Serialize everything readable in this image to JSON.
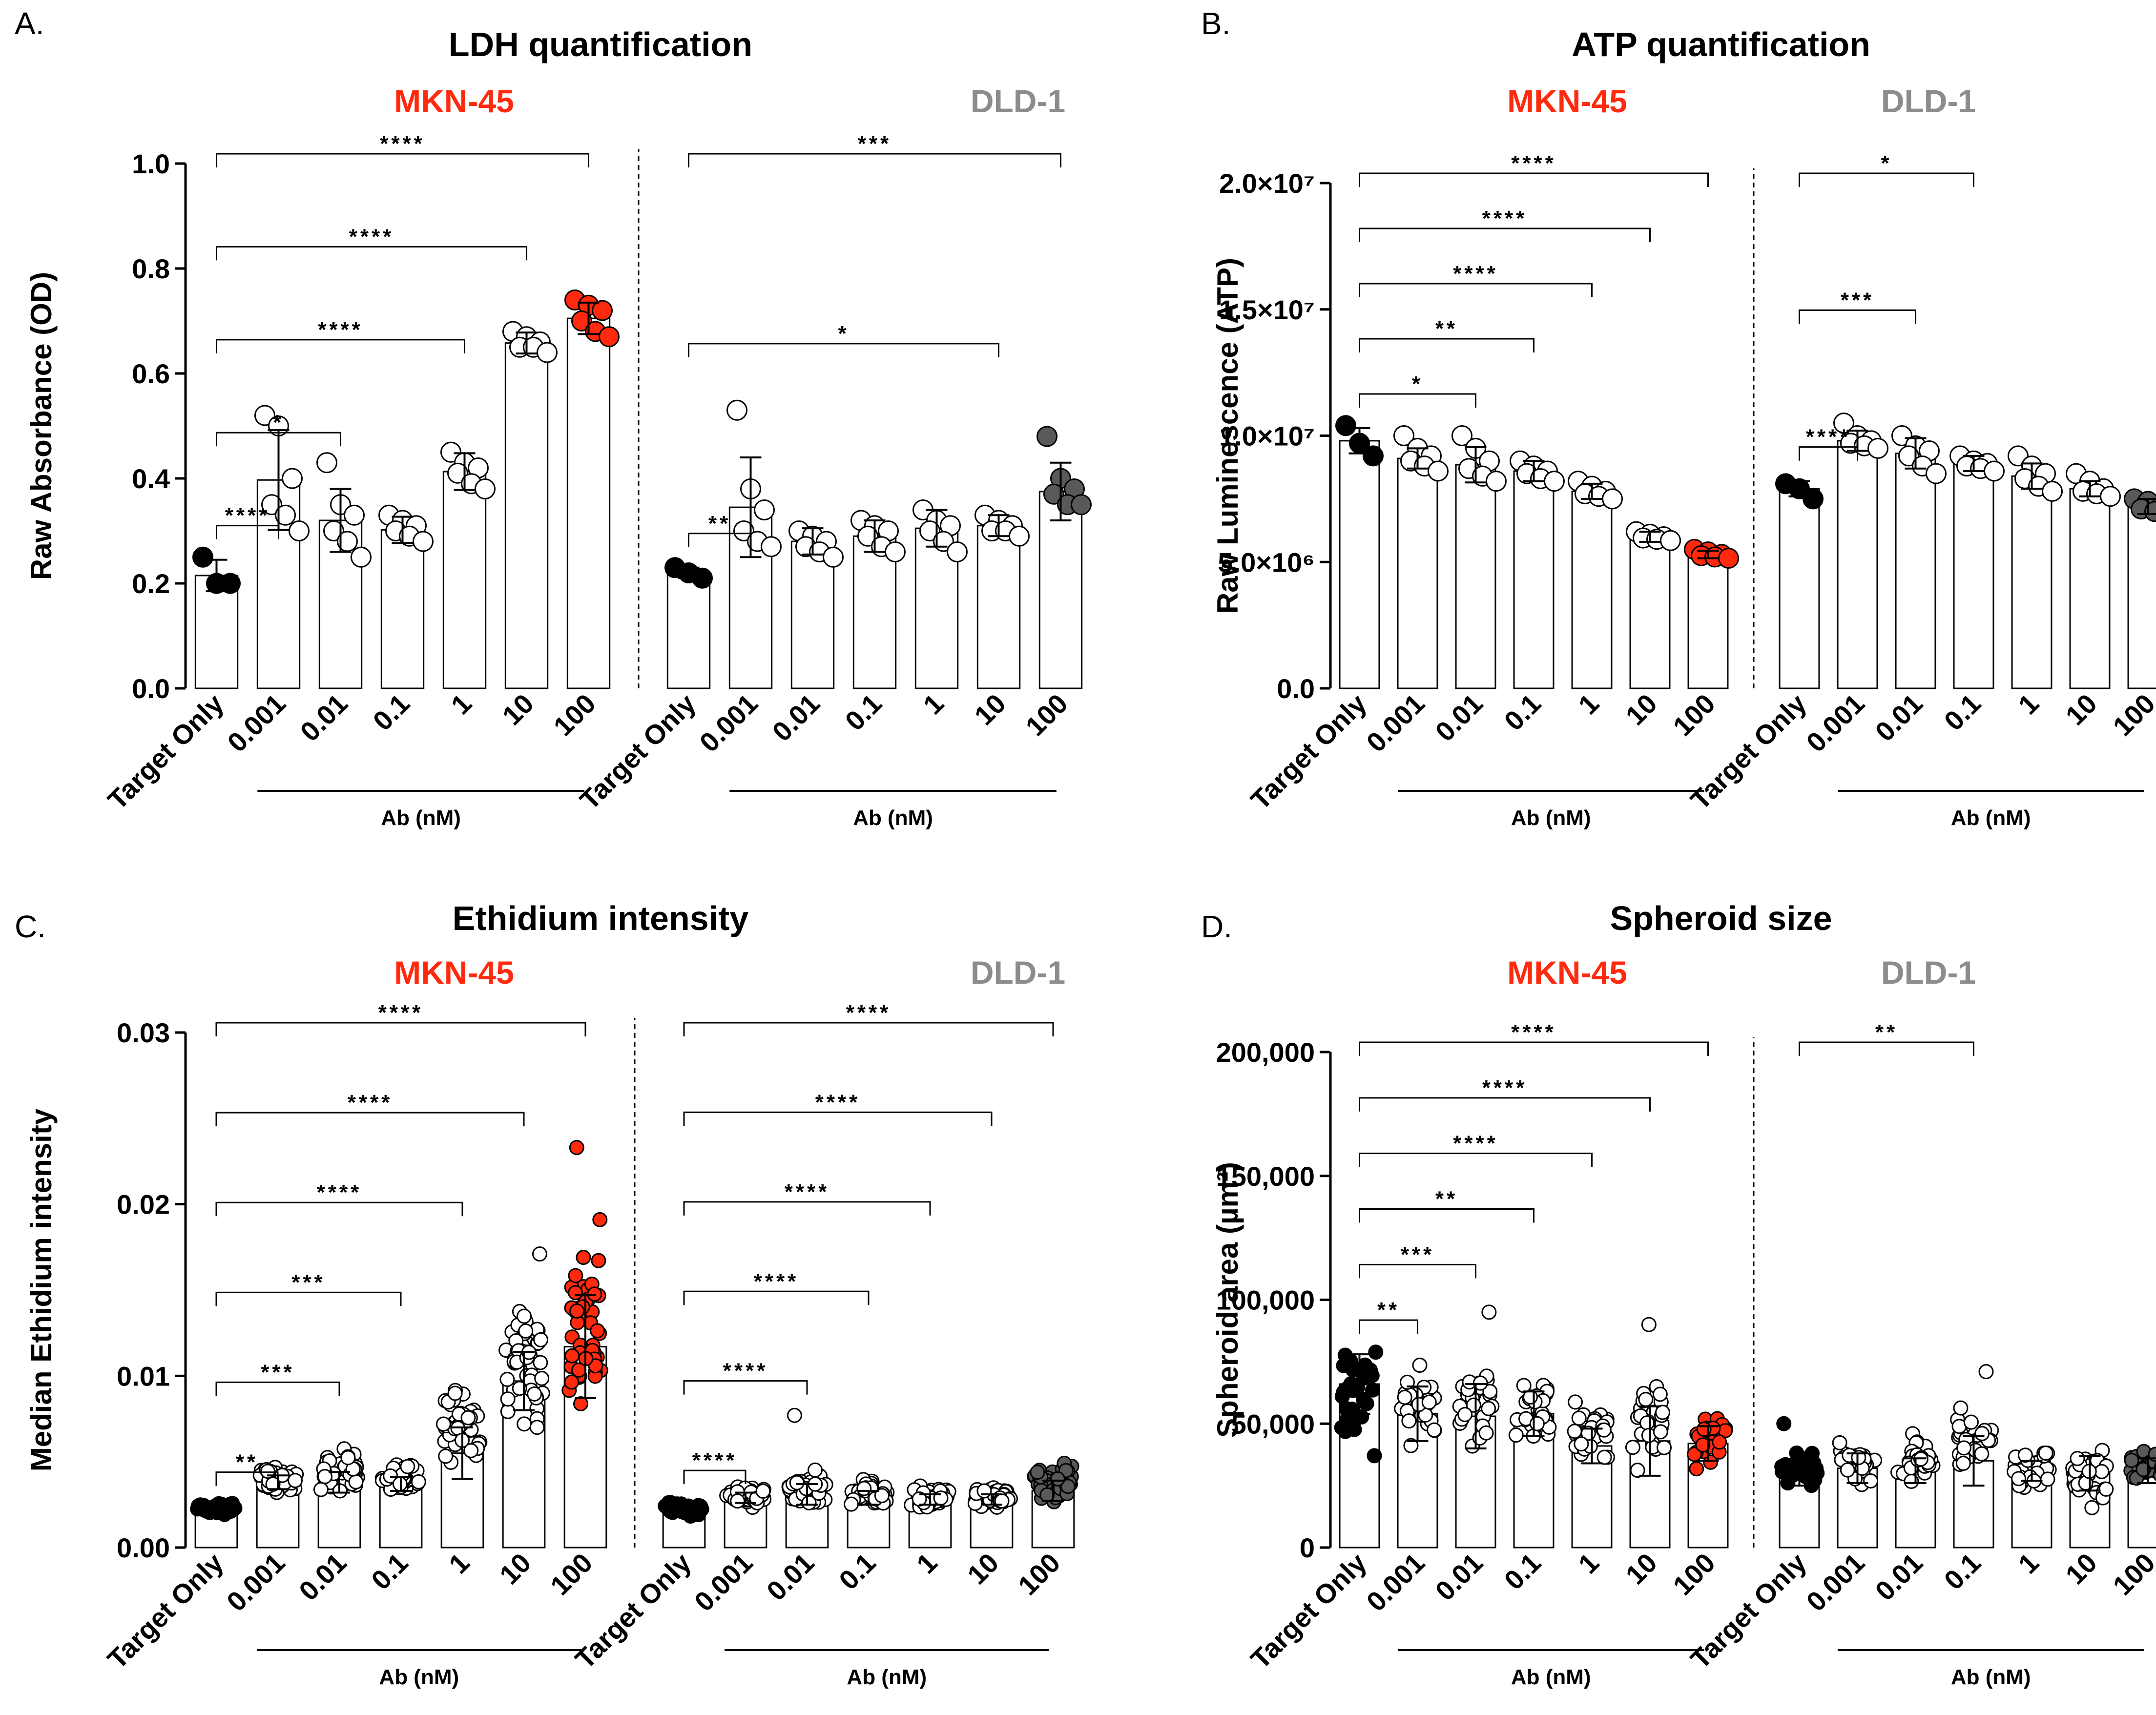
{
  "figure": {
    "x_group_label": "Ab (nM)",
    "categories": [
      "Target Only",
      "0.001",
      "0.01",
      "0.1",
      "1",
      "10",
      "100"
    ],
    "colors": {
      "mkn45": "#ff2a0e",
      "dld1": "#8c8c8c",
      "mkn_dark": "#000000",
      "dld_dark": "#595959",
      "red_dot": "#ff2a0e"
    }
  },
  "chart_data": [
    {
      "panel_label": "A.",
      "type": "bar",
      "title": "LDH quantification",
      "ylabel": "Raw Absorbance (OD)",
      "ylim": [
        0,
        1.0
      ],
      "yticks": [
        0.0,
        0.2,
        0.4,
        0.6,
        0.8,
        1.0
      ],
      "ytick_labels": [
        "0.0",
        "0.2",
        "0.4",
        "0.6",
        "0.8",
        "1.0"
      ],
      "groups": [
        {
          "name": "MKN-45",
          "categories": [
            "Target Only",
            "0.001",
            "0.01",
            "0.1",
            "1",
            "10",
            "100"
          ],
          "values": [
            0.215,
            0.397,
            0.32,
            0.302,
            0.413,
            0.658,
            0.705
          ],
          "sd": [
            0.03,
            0.095,
            0.06,
            0.025,
            0.035,
            0.02,
            0.03
          ],
          "points": [
            [
              0.25,
              0.2,
              0.2
            ],
            [
              0.52,
              0.5,
              0.4,
              0.35,
              0.33,
              0.3
            ],
            [
              0.43,
              0.35,
              0.33,
              0.3,
              0.28,
              0.25
            ],
            [
              0.33,
              0.32,
              0.31,
              0.3,
              0.29,
              0.28
            ],
            [
              0.45,
              0.43,
              0.42,
              0.41,
              0.39,
              0.38
            ],
            [
              0.68,
              0.67,
              0.66,
              0.65,
              0.65,
              0.64
            ],
            [
              0.74,
              0.73,
              0.72,
              0.7,
              0.68,
              0.67
            ]
          ],
          "significance": [
            {
              "target": "0.001",
              "stars": "****"
            },
            {
              "target": "0.01",
              "stars": "*"
            },
            {
              "target": "1",
              "stars": "****"
            },
            {
              "target": "10",
              "stars": "****"
            },
            {
              "target": "100",
              "stars": "****"
            }
          ]
        },
        {
          "name": "DLD-1",
          "categories": [
            "Target Only",
            "0.001",
            "0.01",
            "0.1",
            "1",
            "10",
            "100"
          ],
          "values": [
            0.22,
            0.345,
            0.28,
            0.29,
            0.305,
            0.31,
            0.375
          ],
          "sd": [
            0.01,
            0.095,
            0.025,
            0.03,
            0.035,
            0.02,
            0.055
          ],
          "points": [
            [
              0.23,
              0.22,
              0.21
            ],
            [
              0.53,
              0.38,
              0.34,
              0.3,
              0.28,
              0.27
            ],
            [
              0.3,
              0.29,
              0.28,
              0.27,
              0.26,
              0.25
            ],
            [
              0.32,
              0.31,
              0.3,
              0.29,
              0.27,
              0.26
            ],
            [
              0.34,
              0.32,
              0.31,
              0.3,
              0.28,
              0.26
            ],
            [
              0.33,
              0.32,
              0.31,
              0.3,
              0.3,
              0.29
            ],
            [
              0.48,
              0.4,
              0.38,
              0.37,
              0.35,
              0.35
            ]
          ],
          "significance": [
            {
              "target": "0.001",
              "stars": "**"
            },
            {
              "target": "10",
              "stars": "*"
            },
            {
              "target": "100",
              "stars": "***"
            }
          ]
        }
      ]
    },
    {
      "panel_label": "B.",
      "type": "bar",
      "title": "ATP quantification",
      "ylabel": "Raw Luminescence (ATP)",
      "ylim": [
        0,
        20000000
      ],
      "yticks": [
        0,
        5000000,
        10000000,
        15000000,
        20000000
      ],
      "ytick_labels": [
        "0.0",
        "5.0×10⁶",
        "1.0×10⁷",
        "1.5×10⁷",
        "2.0×10⁷"
      ],
      "groups": [
        {
          "name": "MKN-45",
          "categories": [
            "Target Only",
            "0.001",
            "0.01",
            "0.1",
            "1",
            "10",
            "100"
          ],
          "values": [
            9800000,
            9100000,
            8850000,
            8600000,
            7800000,
            6000000,
            5300000
          ],
          "sd": [
            500000,
            400000,
            700000,
            400000,
            300000,
            200000,
            150000
          ],
          "points": [
            [
              10400000,
              9700000,
              9200000
            ],
            [
              10000000,
              9500000,
              9200000,
              9000000,
              8800000,
              8600000
            ],
            [
              10000000,
              9500000,
              9000000,
              8700000,
              8400000,
              8200000
            ],
            [
              9000000,
              8800000,
              8600000,
              8500000,
              8300000,
              8200000
            ],
            [
              8200000,
              8000000,
              7800000,
              7700000,
              7600000,
              7500000
            ],
            [
              6200000,
              6100000,
              6000000,
              5950000,
              5900000,
              5850000
            ],
            [
              5500000,
              5400000,
              5300000,
              5250000,
              5200000,
              5150000
            ]
          ],
          "significance": [
            {
              "target": "0.01",
              "stars": "*"
            },
            {
              "target": "0.1",
              "stars": "**"
            },
            {
              "target": "1",
              "stars": "****"
            },
            {
              "target": "10",
              "stars": "****"
            },
            {
              "target": "100",
              "stars": "****"
            }
          ]
        },
        {
          "name": "DLD-1",
          "categories": [
            "Target Only",
            "0.001",
            "0.01",
            "0.1",
            "1",
            "10",
            "100"
          ],
          "values": [
            7900000,
            9800000,
            9300000,
            8900000,
            8400000,
            7900000,
            7200000
          ],
          "sd": [
            300000,
            400000,
            600000,
            300000,
            500000,
            300000,
            300000
          ],
          "points": [
            [
              8100000,
              7900000,
              7500000
            ],
            [
              10500000,
              10000000,
              9800000,
              9700000,
              9600000,
              9500000
            ],
            [
              10000000,
              9600000,
              9400000,
              9200000,
              8800000,
              8500000
            ],
            [
              9200000,
              9000000,
              8900000,
              8800000,
              8700000,
              8600000
            ],
            [
              9200000,
              8800000,
              8500000,
              8300000,
              8000000,
              7800000
            ],
            [
              8500000,
              8200000,
              7900000,
              7800000,
              7700000,
              7600000
            ],
            [
              7500000,
              7400000,
              7200000,
              7100000,
              7000000,
              6900000
            ]
          ],
          "significance": [
            {
              "target": "0.001",
              "stars": "****"
            },
            {
              "target": "0.01",
              "stars": "***"
            },
            {
              "target": "0.1",
              "stars": "*"
            }
          ]
        }
      ]
    },
    {
      "panel_label": "C.",
      "type": "bar",
      "title": "Ethidium intensity",
      "ylabel": "Median Ethidium intensity",
      "ylim": [
        0,
        0.03
      ],
      "yticks": [
        0,
        0.01,
        0.02,
        0.03
      ],
      "ytick_labels": [
        "0.00",
        "0.01",
        "0.02",
        "0.03"
      ],
      "groups": [
        {
          "name": "MKN-45",
          "categories": [
            "Target Only",
            "0.001",
            "0.01",
            "0.1",
            "1",
            "10",
            "100"
          ],
          "values": [
            0.0022,
            0.0038,
            0.0038,
            0.0037,
            0.0055,
            0.0097,
            0.0117
          ],
          "sd": [
            0.0002,
            0.0004,
            0.0006,
            0.0004,
            0.0015,
            0.0017,
            0.003
          ],
          "spread": [
            [
              0.0019,
              0.0027
            ],
            [
              0.003,
              0.005
            ],
            [
              0.0028,
              0.006
            ],
            [
              0.003,
              0.0052
            ],
            [
              0.0035,
              0.011
            ],
            [
              0.0062,
              0.0145
            ],
            [
              0.0055,
              0.0206
            ]
          ],
          "outliers": [
            [],
            [],
            [],
            [],
            [],
            [
              0.0171
            ],
            [
              0.0233
            ]
          ],
          "n_points": 50,
          "significance": [
            {
              "target": "0.001",
              "stars": "**"
            },
            {
              "target": "0.01",
              "stars": "***"
            },
            {
              "target": "0.1",
              "stars": "***"
            },
            {
              "target": "1",
              "stars": "****"
            },
            {
              "target": "10",
              "stars": "****"
            },
            {
              "target": "100",
              "stars": "****"
            }
          ]
        },
        {
          "name": "DLD-1",
          "categories": [
            "Target Only",
            "0.001",
            "0.01",
            "0.1",
            "1",
            "10",
            "100"
          ],
          "values": [
            0.0023,
            0.0029,
            0.0031,
            0.0029,
            0.0028,
            0.0028,
            0.0033
          ],
          "sd": [
            0.0002,
            0.0003,
            0.0006,
            0.0004,
            0.0003,
            0.0003,
            0.0006
          ],
          "spread": [
            [
              0.0017,
              0.0028
            ],
            [
              0.0022,
              0.0038
            ],
            [
              0.0022,
              0.0046
            ],
            [
              0.0021,
              0.0042
            ],
            [
              0.0021,
              0.0038
            ],
            [
              0.0021,
              0.0038
            ],
            [
              0.0023,
              0.0052
            ]
          ],
          "outliers": [
            [],
            [],
            [
              0.0077
            ],
            [],
            [],
            [],
            []
          ],
          "n_points": 50,
          "significance": [
            {
              "target": "0.001",
              "stars": "****"
            },
            {
              "target": "0.01",
              "stars": "****"
            },
            {
              "target": "0.1",
              "stars": "****"
            },
            {
              "target": "1",
              "stars": "****"
            },
            {
              "target": "10",
              "stars": "****"
            },
            {
              "target": "100",
              "stars": "****"
            }
          ]
        }
      ]
    },
    {
      "panel_label": "D.",
      "type": "bar",
      "title": "Spheroid size",
      "ylabel": "Spheroid area (µm²)",
      "ylim": [
        0,
        200000
      ],
      "yticks": [
        0,
        50000,
        100000,
        150000,
        200000
      ],
      "ytick_labels": [
        "0",
        "50,000",
        "100,000",
        "150,000",
        "200,000"
      ],
      "groups": [
        {
          "name": "MKN-45",
          "categories": [
            "Target Only",
            "0.001",
            "0.01",
            "0.1",
            "1",
            "10",
            "100"
          ],
          "values": [
            66000,
            54000,
            53000,
            54000,
            41000,
            43000,
            42000
          ],
          "sd": [
            12000,
            11000,
            13000,
            9000,
            7000,
            14000,
            7000
          ],
          "spread": [
            [
              31000,
              88000
            ],
            [
              32000,
              82000
            ],
            [
              32000,
              80000
            ],
            [
              38000,
              73000
            ],
            [
              30000,
              62000
            ],
            [
              26000,
              75000
            ],
            [
              30000,
              57000
            ]
          ],
          "outliers": [
            [],
            [],
            [
              95000
            ],
            [],
            [],
            [
              90000
            ],
            []
          ],
          "n_points": 30,
          "significance": [
            {
              "target": "0.001",
              "stars": "**"
            },
            {
              "target": "0.01",
              "stars": "***"
            },
            {
              "target": "0.1",
              "stars": "**"
            },
            {
              "target": "1",
              "stars": "****"
            },
            {
              "target": "10",
              "stars": "****"
            },
            {
              "target": "100",
              "stars": "****"
            }
          ]
        },
        {
          "name": "DLD-1",
          "categories": [
            "Target Only",
            "0.001",
            "0.01",
            "0.1",
            "1",
            "10",
            "100"
          ],
          "values": [
            29000,
            32000,
            31000,
            35000,
            31000,
            30000,
            31000
          ],
          "sd": [
            4000,
            6000,
            5000,
            10000,
            4000,
            7000,
            5000
          ],
          "spread": [
            [
              22000,
              40000
            ],
            [
              24000,
              46000
            ],
            [
              24000,
              50000
            ],
            [
              24000,
              62000
            ],
            [
              18000,
              44000
            ],
            [
              10000,
              46000
            ],
            [
              22000,
              44000
            ]
          ],
          "outliers": [
            [
              50000
            ],
            [],
            [],
            [
              71000
            ],
            [],
            [],
            []
          ],
          "n_points": 30,
          "significance": [
            {
              "target": "0.1",
              "stars": "**"
            }
          ]
        }
      ]
    }
  ]
}
